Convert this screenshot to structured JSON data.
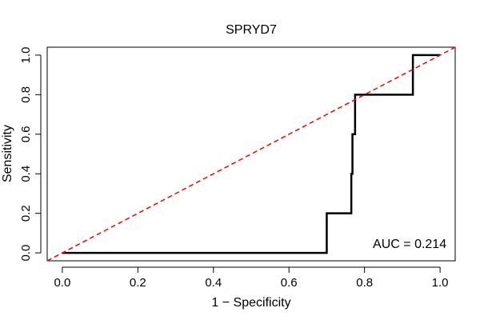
{
  "chart_data": {
    "type": "line",
    "title": "SPRYD7",
    "xlabel": "1 − Specificity",
    "ylabel": "Sensitivity",
    "xlim": [
      -0.04,
      1.04
    ],
    "ylim": [
      -0.04,
      1.04
    ],
    "xticks": [
      0.0,
      0.2,
      0.4,
      0.6,
      0.8,
      1.0
    ],
    "yticks": [
      0.0,
      0.2,
      0.4,
      0.6,
      0.8,
      1.0
    ],
    "xtick_labels": [
      "0.0",
      "0.2",
      "0.4",
      "0.6",
      "0.8",
      "1.0"
    ],
    "ytick_labels": [
      "0.0",
      "0.2",
      "0.4",
      "0.6",
      "0.8",
      "1.0"
    ],
    "grid": false,
    "series": [
      {
        "color": "#000000",
        "style": "solid",
        "x": [
          0.0,
          0.7,
          0.7,
          0.765,
          0.765,
          0.768,
          0.768,
          0.775,
          0.775,
          0.928,
          0.928,
          1.0
        ],
        "y": [
          0.0,
          0.0,
          0.2,
          0.2,
          0.4,
          0.4,
          0.6,
          0.6,
          0.8,
          0.8,
          1.0,
          1.0
        ]
      },
      {
        "color": "#ff0000",
        "style": "dashed",
        "x": [
          -0.04,
          1.04
        ],
        "y": [
          -0.04,
          1.04
        ]
      }
    ],
    "annotations": [
      {
        "text": "AUC = 0.214",
        "x": 1.0,
        "y": 0.025
      }
    ]
  }
}
